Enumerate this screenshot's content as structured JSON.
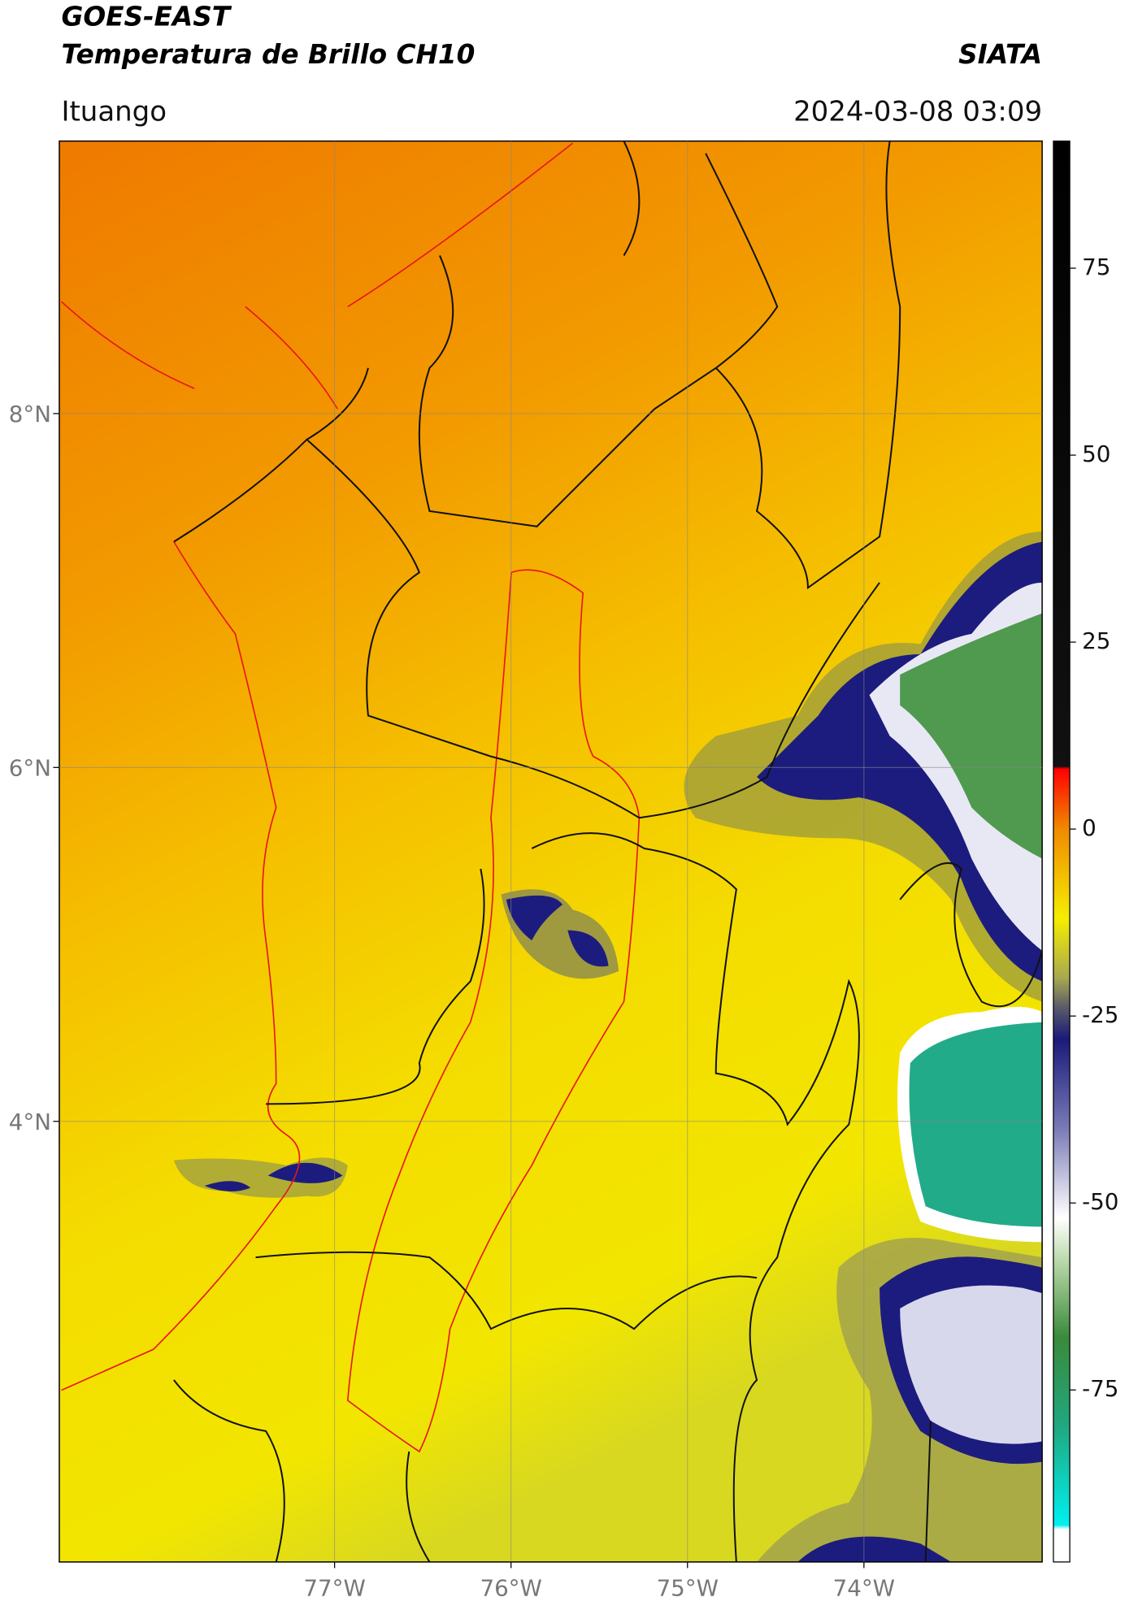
{
  "header": {
    "title": "GOES-EAST",
    "subtitle": "Temperatura de Brillo CH10",
    "agency": "SIATA",
    "location": "Ituango",
    "datetime": "2024-03-08 03:09"
  },
  "chart_data": {
    "type": "map",
    "xlim": [
      -78.56,
      -72.99
    ],
    "ylim": [
      1.51,
      9.54
    ],
    "xticks": [
      {
        "value": -77,
        "label": "77°W"
      },
      {
        "value": -76,
        "label": "76°W"
      },
      {
        "value": -75,
        "label": "75°W"
      },
      {
        "value": -74,
        "label": "74°W"
      }
    ],
    "yticks": [
      {
        "value": 4,
        "label": "4°N"
      },
      {
        "value": 6,
        "label": "6°N"
      },
      {
        "value": 8,
        "label": "8°N"
      }
    ],
    "grid": true,
    "colorbar": {
      "lim": [
        -98,
        92
      ],
      "ticks": [
        -75,
        -50,
        -25,
        0,
        25,
        50,
        75
      ]
    }
  }
}
